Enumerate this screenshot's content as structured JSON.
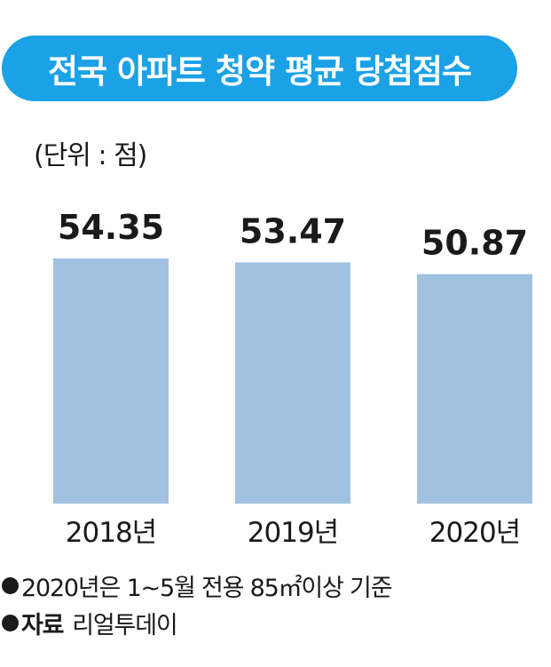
{
  "header": {
    "title": "전국 아파트 청약 평균 당첨점수",
    "unit": "(단위 : 점)"
  },
  "colors": {
    "banner": "#1aa1e6",
    "bar": "#a0c1e0",
    "text": "#1a1a1a"
  },
  "chart_data": {
    "type": "bar",
    "categories": [
      "2018년",
      "2019년",
      "2020년"
    ],
    "values": [
      54.35,
      53.47,
      50.87
    ],
    "value_labels": [
      "54.35",
      "53.47",
      "50.87"
    ],
    "title": "전국 아파트 청약 평균 당첨점수",
    "unit": "(단위 : 점)",
    "grid": false
  },
  "footnotes": {
    "note": "2020년은 1~5월 전용 85㎡이상 기준",
    "source_label": "자료",
    "source_value": "리얼투데이"
  }
}
